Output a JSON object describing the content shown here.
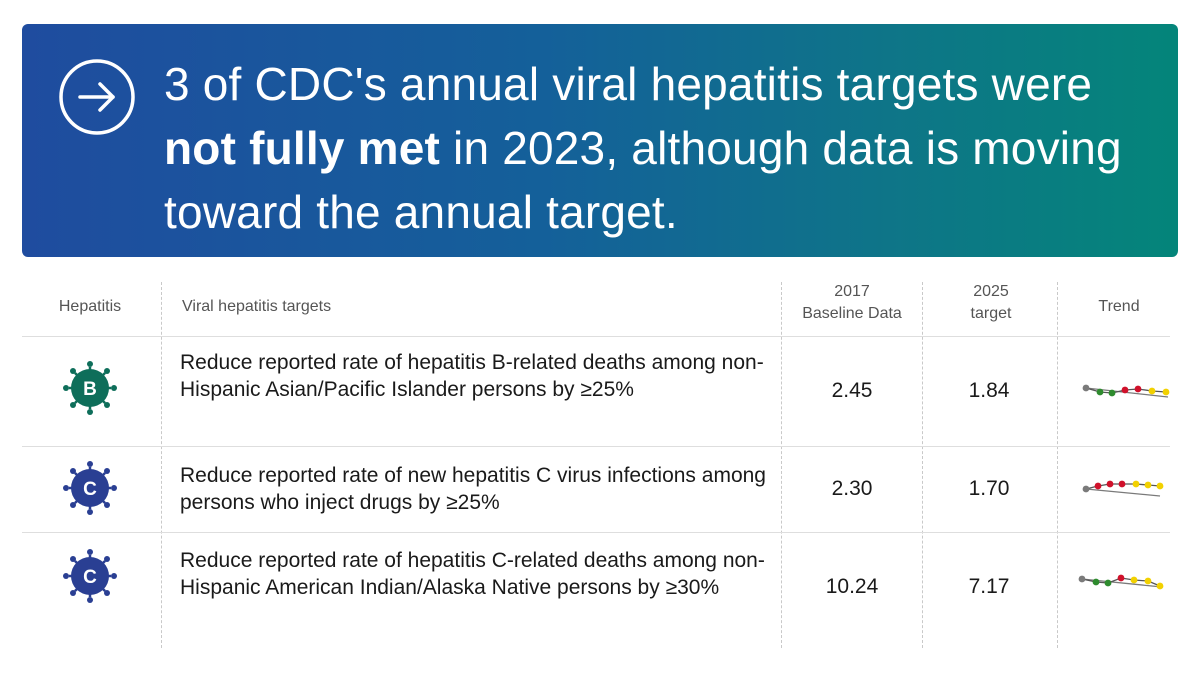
{
  "banner": {
    "headline_pre": "3 of CDC's annual viral hepatitis targets were ",
    "headline_bold": "not fully met",
    "headline_post": " in 2023, although data is moving toward the annual target.",
    "gradient_start": "#1f4c9f",
    "gradient_end": "#04857a",
    "icon": "arrow-right-circle-icon"
  },
  "table": {
    "headers": {
      "hepatitis": "Hepatitis",
      "targets": "Viral hepatitis targets",
      "baseline_line1": "2017",
      "baseline_line2": "Baseline Data",
      "target_line1": "2025",
      "target_line2": "target",
      "trend": "Trend"
    },
    "rows": [
      {
        "hep_letter": "B",
        "badge_color": "#0e6e5a",
        "target": "Reduce reported rate of hepatitis B-related deaths among non-Hispanic Asian/Pacific Islander persons by ≥25%",
        "baseline": "2.45",
        "goal": "1.84"
      },
      {
        "hep_letter": "C",
        "badge_color": "#2a3f93",
        "target": "Reduce reported rate of new hepatitis C virus infections among persons who inject drugs by ≥25%",
        "baseline": "2.30",
        "goal": "1.70"
      },
      {
        "hep_letter": "C",
        "badge_color": "#2a3f93",
        "target": "Reduce reported rate of hepatitis C-related deaths among non-Hispanic American Indian/Alaska Native persons by ≥30%",
        "baseline": "10.24",
        "goal": "7.17"
      }
    ],
    "trend_colors": {
      "baseline": "#7a7a7a",
      "met": "#2e8b2e",
      "not_met": "#d0112b",
      "improving": "#f2d100"
    }
  }
}
